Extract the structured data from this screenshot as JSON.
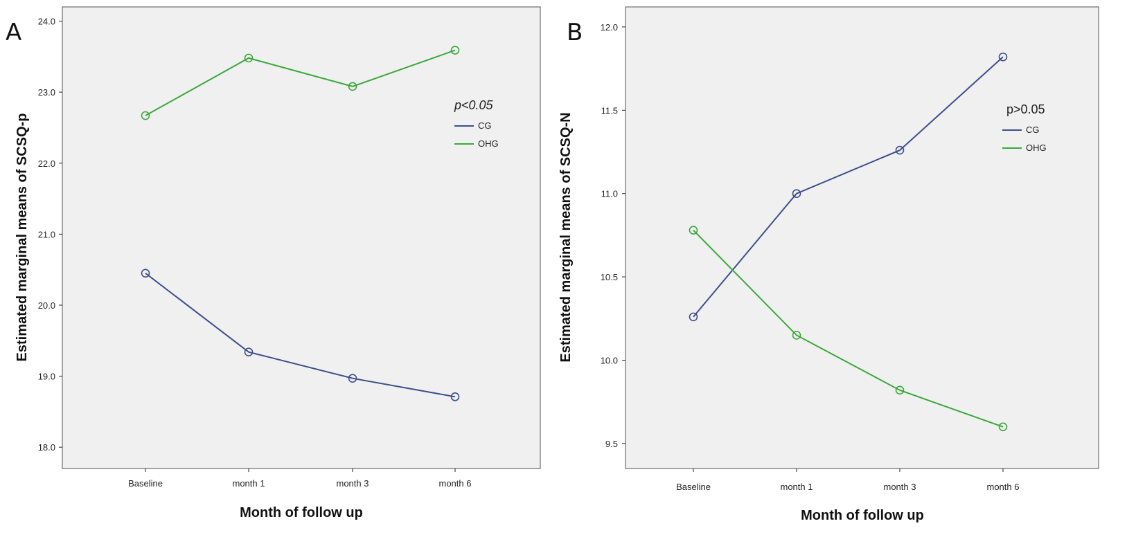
{
  "chart_data": [
    {
      "type": "line",
      "panel_label": "A",
      "title": "",
      "xlabel": "Month of follow up",
      "ylabel": "Estimated marginal means of SCSQ-p",
      "categories": [
        "Baseline",
        "month 1",
        "month 3",
        "month 6"
      ],
      "ylim": [
        17.7,
        24.2
      ],
      "yticks": [
        18.0,
        19.0,
        20.0,
        21.0,
        22.0,
        23.0,
        24.0
      ],
      "ytick_labels": [
        "18.0",
        "19.0",
        "20.0",
        "21.0",
        "22.0",
        "23.0",
        "24.0"
      ],
      "annotation": "p<0.05",
      "annotation_italic": true,
      "legend_position": "right",
      "series": [
        {
          "name": "CG",
          "color": "#3d4f8c",
          "values": [
            20.45,
            19.34,
            18.97,
            18.71
          ]
        },
        {
          "name": "OHG",
          "color": "#3aa83a",
          "values": [
            22.67,
            23.48,
            23.08,
            23.59
          ]
        }
      ]
    },
    {
      "type": "line",
      "panel_label": "B",
      "title": "",
      "xlabel": "Month of follow up",
      "ylabel": "Estimated marginal means of SCSQ-N",
      "categories": [
        "Baseline",
        "month 1",
        "month 3",
        "month 6"
      ],
      "ylim": [
        9.35,
        12.12
      ],
      "yticks": [
        9.5,
        10.0,
        10.5,
        11.0,
        11.5,
        12.0
      ],
      "ytick_labels": [
        "9.5",
        "10.0",
        "10.5",
        "11.0",
        "11.5",
        "12.0"
      ],
      "annotation": "p>0.05",
      "annotation_italic": false,
      "legend_position": "right",
      "series": [
        {
          "name": "CG",
          "color": "#3d4f8c",
          "values": [
            10.26,
            11.0,
            11.26,
            11.82
          ]
        },
        {
          "name": "OHG",
          "color": "#3aa83a",
          "values": [
            10.78,
            10.15,
            9.82,
            9.6
          ]
        }
      ]
    }
  ]
}
